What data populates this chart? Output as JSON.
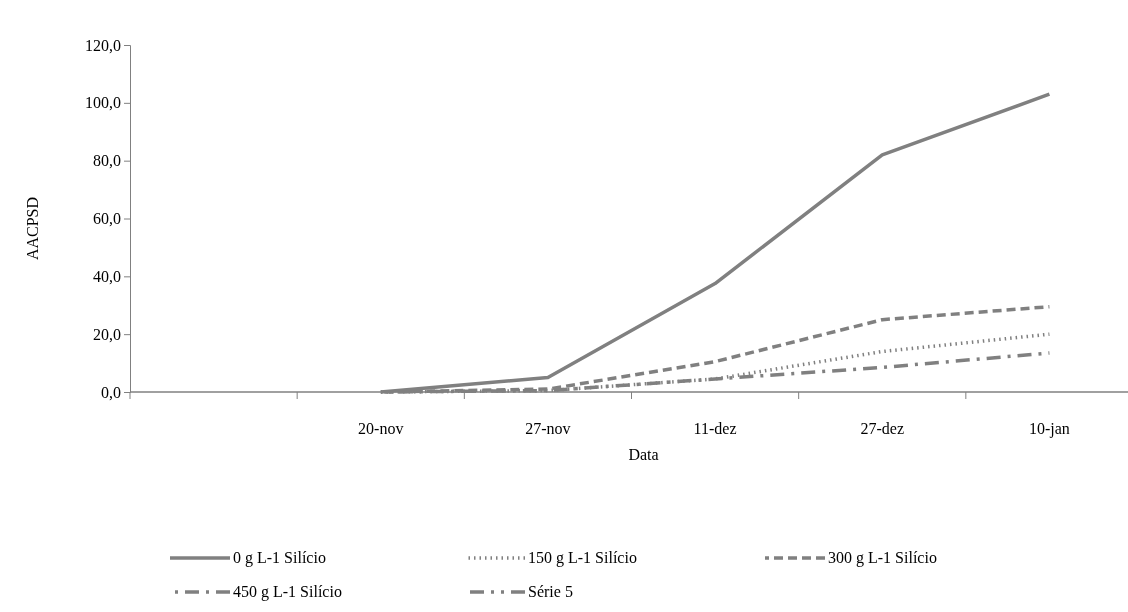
{
  "chart_data": {
    "type": "line",
    "xlabel": "Data",
    "ylabel": "AACPSD",
    "categories": [
      null,
      "20-nov",
      "27-nov",
      "11-dez",
      "27-dez",
      "10-jan"
    ],
    "ylim": [
      0,
      120
    ],
    "yticks": [
      {
        "value": 0,
        "label": "0,0"
      },
      {
        "value": 20,
        "label": "20,0"
      },
      {
        "value": 40,
        "label": "40,0"
      },
      {
        "value": 60,
        "label": "60,0"
      },
      {
        "value": 80,
        "label": "80,0"
      },
      {
        "value": 100,
        "label": "100,0"
      },
      {
        "value": 120,
        "label": "120,0"
      }
    ],
    "grid": false,
    "legend": "bottom",
    "marker": "none",
    "series": [
      {
        "name": "0 g L-1 Silício",
        "color": "#808080",
        "line_style": "solid",
        "values": [
          null,
          0,
          5,
          37.5,
          82,
          103
        ]
      },
      {
        "name": "150 g L-1 Silício",
        "color": "#808080",
        "line_style": "dotted",
        "values": [
          null,
          0,
          0.5,
          4.5,
          14,
          20
        ]
      },
      {
        "name": "300 g L-1 Silício",
        "color": "#808080",
        "line_style": "dashed",
        "values": [
          null,
          0,
          1,
          10.5,
          25,
          29.5
        ]
      },
      {
        "name": "450 g L-1 Silício",
        "color": "#808080",
        "line_style": "dashdot",
        "values": [
          null,
          0,
          0.5,
          4.5,
          8.5,
          13.5
        ]
      },
      {
        "name": "Série 5",
        "color": "#808080",
        "line_style": "dashdotdot",
        "values": [
          null,
          null,
          null,
          null,
          null,
          null
        ]
      }
    ]
  }
}
